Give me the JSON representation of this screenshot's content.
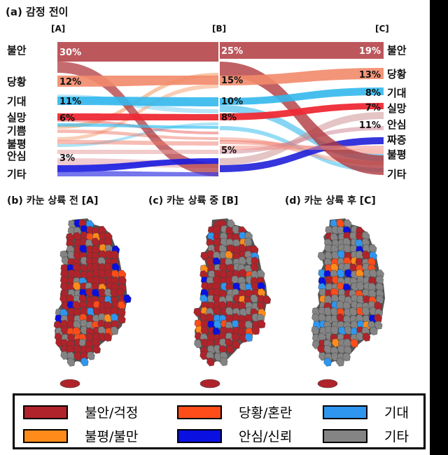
{
  "panel_a": {
    "title": "(a) 감정 전이",
    "stages": [
      "[A]",
      "[B]",
      "[C]"
    ],
    "left_labels": [
      "불안",
      "당황",
      "기대",
      "실망",
      "기쁨",
      "불평",
      "안심",
      "기타"
    ],
    "right_labels": [
      "불안",
      "당황",
      "기대",
      "실망",
      "안심",
      "짜증",
      "불평",
      "기타"
    ]
  },
  "maps": [
    {
      "title": "(b) 카눈 상륙 전 [A]"
    },
    {
      "title": "(c) 카눈 상륙 중 [B]"
    },
    {
      "title": "(d) 카눈 상륙 후 [C]"
    }
  ],
  "legend": [
    {
      "label": "불안/걱정",
      "color": "#b0232a"
    },
    {
      "label": "당황/혼란",
      "color": "#ff4d1a"
    },
    {
      "label": "기대",
      "color": "#2f96f0"
    },
    {
      "label": "불평/불만",
      "color": "#ff8c1a"
    },
    {
      "label": "안심/신뢰",
      "color": "#0a10e0"
    },
    {
      "label": "기타",
      "color": "#848484"
    }
  ],
  "chart_data": {
    "type": "sankey",
    "stage_names": [
      "[A]",
      "[B]",
      "[C]"
    ],
    "percent_labels": {
      "A": {
        "불안": "30%",
        "당황": "12%",
        "기대": "11%",
        "실망": "6%",
        "안심": "3%"
      },
      "B": {
        "불안": "25%",
        "당황": "15%",
        "기대": "10%",
        "실망": "8%",
        "기타": "5%"
      },
      "C": {
        "불안": "19%",
        "당황": "13%",
        "기대": "8%",
        "실망": "7%",
        "안심": "11%"
      }
    },
    "colors": {
      "불안": "#b0393f",
      "당황": "#f28a6a",
      "기대": "#33b8ec",
      "실망": "#ee2a35",
      "기쁨": "#3cc0ee",
      "불평": "#f07a6a",
      "안심": "#c98a8a",
      "기타": "#1a1ae0",
      "짜증": "#2020d8"
    }
  }
}
